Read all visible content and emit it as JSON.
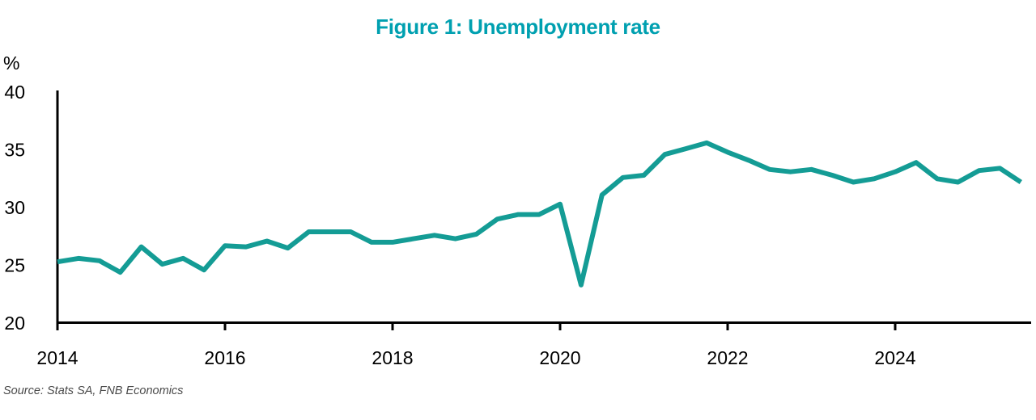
{
  "title": "Figure 1: Unemployment rate",
  "source": "Source: Stats SA, FNB Economics",
  "colors": {
    "title": "#00A0B0",
    "line": "#149C95",
    "axis": "#000000",
    "tick_label": "#000000",
    "source": "#4A4A4A",
    "background": "#FFFFFF"
  },
  "chart_data": {
    "type": "line",
    "title": "Figure 1: Unemployment rate",
    "ylabel": "%",
    "series_name": "Unemployment rate",
    "frequency": "quarterly",
    "x_start": 2014.0,
    "x_step": 0.25,
    "periods": [
      "2014Q1",
      "2014Q2",
      "2014Q3",
      "2014Q4",
      "2015Q1",
      "2015Q2",
      "2015Q3",
      "2015Q4",
      "2016Q1",
      "2016Q2",
      "2016Q3",
      "2016Q4",
      "2017Q1",
      "2017Q2",
      "2017Q3",
      "2017Q4",
      "2018Q1",
      "2018Q2",
      "2018Q3",
      "2018Q4",
      "2019Q1",
      "2019Q2",
      "2019Q3",
      "2019Q4",
      "2020Q1",
      "2020Q2",
      "2020Q3",
      "2020Q4",
      "2021Q1",
      "2021Q2",
      "2021Q3",
      "2021Q4",
      "2022Q1",
      "2022Q2",
      "2022Q3",
      "2022Q4",
      "2023Q1",
      "2023Q2",
      "2023Q3",
      "2023Q4",
      "2024Q1",
      "2024Q2",
      "2024Q3",
      "2024Q4",
      "2025Q1",
      "2025Q2",
      "2025Q3"
    ],
    "values": [
      25.3,
      25.6,
      25.4,
      24.4,
      26.6,
      25.1,
      25.6,
      24.6,
      26.7,
      26.6,
      27.1,
      26.5,
      27.9,
      27.9,
      27.9,
      27.0,
      27.0,
      27.3,
      27.6,
      27.3,
      27.7,
      29.0,
      29.4,
      29.4,
      30.3,
      23.3,
      31.1,
      32.6,
      32.8,
      34.6,
      35.1,
      35.6,
      34.8,
      34.1,
      33.3,
      33.1,
      33.3,
      32.8,
      32.2,
      32.5,
      33.1,
      33.9,
      32.5,
      32.2,
      33.2,
      33.4,
      32.2
    ],
    "x_ticks": [
      2014,
      2016,
      2018,
      2020,
      2022,
      2024
    ],
    "x_tick_labels": [
      "2014",
      "2016",
      "2018",
      "2020",
      "2022",
      "2024"
    ],
    "y_ticks": [
      20,
      25,
      30,
      35,
      40
    ],
    "y_tick_labels": [
      "20",
      "25",
      "30",
      "35",
      "40"
    ],
    "ylim": [
      20,
      40
    ],
    "xlim": [
      2014,
      2025.75
    ],
    "grid": false,
    "legend_position": "none"
  }
}
